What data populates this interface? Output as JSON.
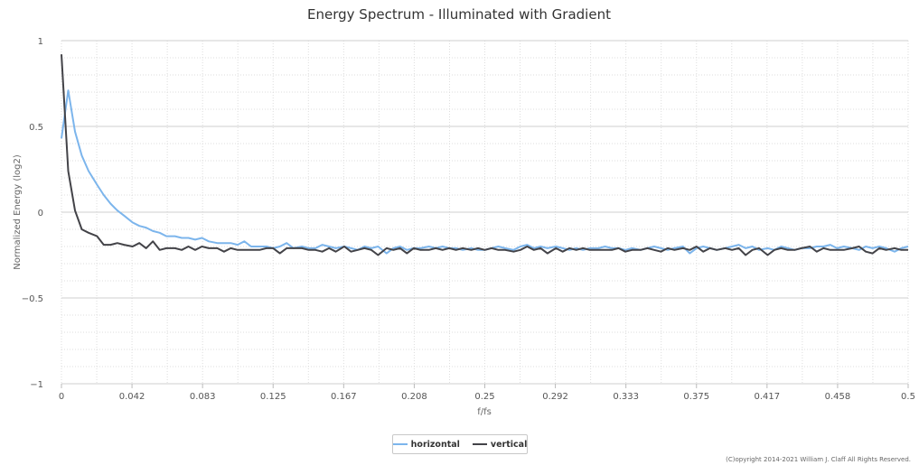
{
  "chart_data": {
    "type": "line",
    "title": "Energy Spectrum - Illuminated with Gradient",
    "xlabel": "f/fs",
    "ylabel": "Normalized Energy (log2)",
    "xlim": [
      0,
      0.5
    ],
    "ylim": [
      -1,
      1
    ],
    "x_ticks": [
      "0",
      "0.042",
      "0.083",
      "0.125",
      "0.167",
      "0.208",
      "0.25",
      "0.292",
      "0.333",
      "0.375",
      "0.417",
      "0.458",
      "0.5"
    ],
    "y_ticks": [
      "1",
      "0.5",
      "0",
      "−0.5",
      "−1"
    ],
    "legend_position": "bottom-center",
    "grid": true,
    "series": [
      {
        "name": "horizontal",
        "color": "#7cb5ec",
        "x": [
          0,
          0.004,
          0.008,
          0.012,
          0.016,
          0.021,
          0.025,
          0.029,
          0.033,
          0.037,
          0.042,
          0.046,
          0.05,
          0.054,
          0.058,
          0.062,
          0.067,
          0.071,
          0.075,
          0.079,
          0.083,
          0.087,
          0.092,
          0.096,
          0.1,
          0.104,
          0.108,
          0.112,
          0.117,
          0.121,
          0.125,
          0.129,
          0.133,
          0.137,
          0.142,
          0.146,
          0.15,
          0.154,
          0.158,
          0.162,
          0.167,
          0.171,
          0.175,
          0.179,
          0.183,
          0.187,
          0.192,
          0.196,
          0.2,
          0.204,
          0.208,
          0.212,
          0.217,
          0.221,
          0.225,
          0.229,
          0.233,
          0.237,
          0.242,
          0.246,
          0.25,
          0.254,
          0.258,
          0.262,
          0.267,
          0.271,
          0.275,
          0.279,
          0.283,
          0.287,
          0.292,
          0.296,
          0.3,
          0.304,
          0.308,
          0.312,
          0.317,
          0.321,
          0.325,
          0.329,
          0.333,
          0.337,
          0.342,
          0.346,
          0.35,
          0.354,
          0.358,
          0.362,
          0.367,
          0.371,
          0.375,
          0.379,
          0.383,
          0.387,
          0.392,
          0.396,
          0.4,
          0.404,
          0.408,
          0.412,
          0.417,
          0.421,
          0.425,
          0.429,
          0.433,
          0.437,
          0.442,
          0.446,
          0.45,
          0.454,
          0.458,
          0.462,
          0.467,
          0.471,
          0.475,
          0.479,
          0.483,
          0.487,
          0.492,
          0.496,
          0.5
        ],
        "y": [
          0.43,
          0.71,
          0.47,
          0.33,
          0.24,
          0.16,
          0.1,
          0.05,
          0.01,
          -0.02,
          -0.06,
          -0.08,
          -0.09,
          -0.11,
          -0.12,
          -0.14,
          -0.14,
          -0.15,
          -0.15,
          -0.16,
          -0.15,
          -0.17,
          -0.18,
          -0.18,
          -0.18,
          -0.19,
          -0.17,
          -0.2,
          -0.2,
          -0.2,
          -0.21,
          -0.2,
          -0.18,
          -0.21,
          -0.2,
          -0.21,
          -0.21,
          -0.19,
          -0.2,
          -0.21,
          -0.2,
          -0.21,
          -0.22,
          -0.2,
          -0.21,
          -0.2,
          -0.24,
          -0.21,
          -0.2,
          -0.22,
          -0.21,
          -0.21,
          -0.2,
          -0.21,
          -0.2,
          -0.21,
          -0.21,
          -0.22,
          -0.21,
          -0.22,
          -0.22,
          -0.21,
          -0.2,
          -0.21,
          -0.22,
          -0.2,
          -0.19,
          -0.21,
          -0.2,
          -0.21,
          -0.2,
          -0.21,
          -0.22,
          -0.21,
          -0.22,
          -0.21,
          -0.21,
          -0.2,
          -0.21,
          -0.21,
          -0.22,
          -0.21,
          -0.22,
          -0.21,
          -0.2,
          -0.21,
          -0.22,
          -0.21,
          -0.2,
          -0.24,
          -0.21,
          -0.2,
          -0.21,
          -0.22,
          -0.21,
          -0.2,
          -0.19,
          -0.21,
          -0.2,
          -0.22,
          -0.21,
          -0.22,
          -0.2,
          -0.21,
          -0.22,
          -0.21,
          -0.21,
          -0.2,
          -0.2,
          -0.19,
          -0.21,
          -0.2,
          -0.21,
          -0.22,
          -0.2,
          -0.21,
          -0.2,
          -0.21,
          -0.23,
          -0.21,
          -0.2
        ]
      },
      {
        "name": "vertical",
        "color": "#434348",
        "x": [
          0,
          0.004,
          0.008,
          0.012,
          0.016,
          0.021,
          0.025,
          0.029,
          0.033,
          0.037,
          0.042,
          0.046,
          0.05,
          0.054,
          0.058,
          0.062,
          0.067,
          0.071,
          0.075,
          0.079,
          0.083,
          0.087,
          0.092,
          0.096,
          0.1,
          0.104,
          0.108,
          0.112,
          0.117,
          0.121,
          0.125,
          0.129,
          0.133,
          0.137,
          0.142,
          0.146,
          0.15,
          0.154,
          0.158,
          0.162,
          0.167,
          0.171,
          0.175,
          0.179,
          0.183,
          0.187,
          0.192,
          0.196,
          0.2,
          0.204,
          0.208,
          0.212,
          0.217,
          0.221,
          0.225,
          0.229,
          0.233,
          0.237,
          0.242,
          0.246,
          0.25,
          0.254,
          0.258,
          0.262,
          0.267,
          0.271,
          0.275,
          0.279,
          0.283,
          0.287,
          0.292,
          0.296,
          0.3,
          0.304,
          0.308,
          0.312,
          0.317,
          0.321,
          0.325,
          0.329,
          0.333,
          0.337,
          0.342,
          0.346,
          0.35,
          0.354,
          0.358,
          0.362,
          0.367,
          0.371,
          0.375,
          0.379,
          0.383,
          0.387,
          0.392,
          0.396,
          0.4,
          0.404,
          0.408,
          0.412,
          0.417,
          0.421,
          0.425,
          0.429,
          0.433,
          0.437,
          0.442,
          0.446,
          0.45,
          0.454,
          0.458,
          0.462,
          0.467,
          0.471,
          0.475,
          0.479,
          0.483,
          0.487,
          0.492,
          0.496,
          0.5
        ],
        "y": [
          0.92,
          0.24,
          0.01,
          -0.1,
          -0.12,
          -0.14,
          -0.19,
          -0.19,
          -0.18,
          -0.19,
          -0.2,
          -0.18,
          -0.21,
          -0.17,
          -0.22,
          -0.21,
          -0.21,
          -0.22,
          -0.2,
          -0.22,
          -0.2,
          -0.21,
          -0.21,
          -0.23,
          -0.21,
          -0.22,
          -0.22,
          -0.22,
          -0.22,
          -0.21,
          -0.21,
          -0.24,
          -0.21,
          -0.21,
          -0.21,
          -0.22,
          -0.22,
          -0.23,
          -0.21,
          -0.23,
          -0.2,
          -0.23,
          -0.22,
          -0.21,
          -0.22,
          -0.25,
          -0.21,
          -0.22,
          -0.21,
          -0.24,
          -0.21,
          -0.22,
          -0.22,
          -0.21,
          -0.22,
          -0.21,
          -0.22,
          -0.21,
          -0.22,
          -0.21,
          -0.22,
          -0.21,
          -0.22,
          -0.22,
          -0.23,
          -0.22,
          -0.2,
          -0.22,
          -0.21,
          -0.24,
          -0.21,
          -0.23,
          -0.21,
          -0.22,
          -0.21,
          -0.22,
          -0.22,
          -0.22,
          -0.22,
          -0.21,
          -0.23,
          -0.22,
          -0.22,
          -0.21,
          -0.22,
          -0.23,
          -0.21,
          -0.22,
          -0.21,
          -0.22,
          -0.2,
          -0.23,
          -0.21,
          -0.22,
          -0.21,
          -0.22,
          -0.21,
          -0.25,
          -0.22,
          -0.21,
          -0.25,
          -0.22,
          -0.21,
          -0.22,
          -0.22,
          -0.21,
          -0.2,
          -0.23,
          -0.21,
          -0.22,
          -0.22,
          -0.22,
          -0.21,
          -0.2,
          -0.23,
          -0.24,
          -0.21,
          -0.22,
          -0.21,
          -0.22,
          -0.22
        ]
      }
    ]
  },
  "copyright": "(C)opyright 2014-2021 William J. Claff All Rights Reserved."
}
